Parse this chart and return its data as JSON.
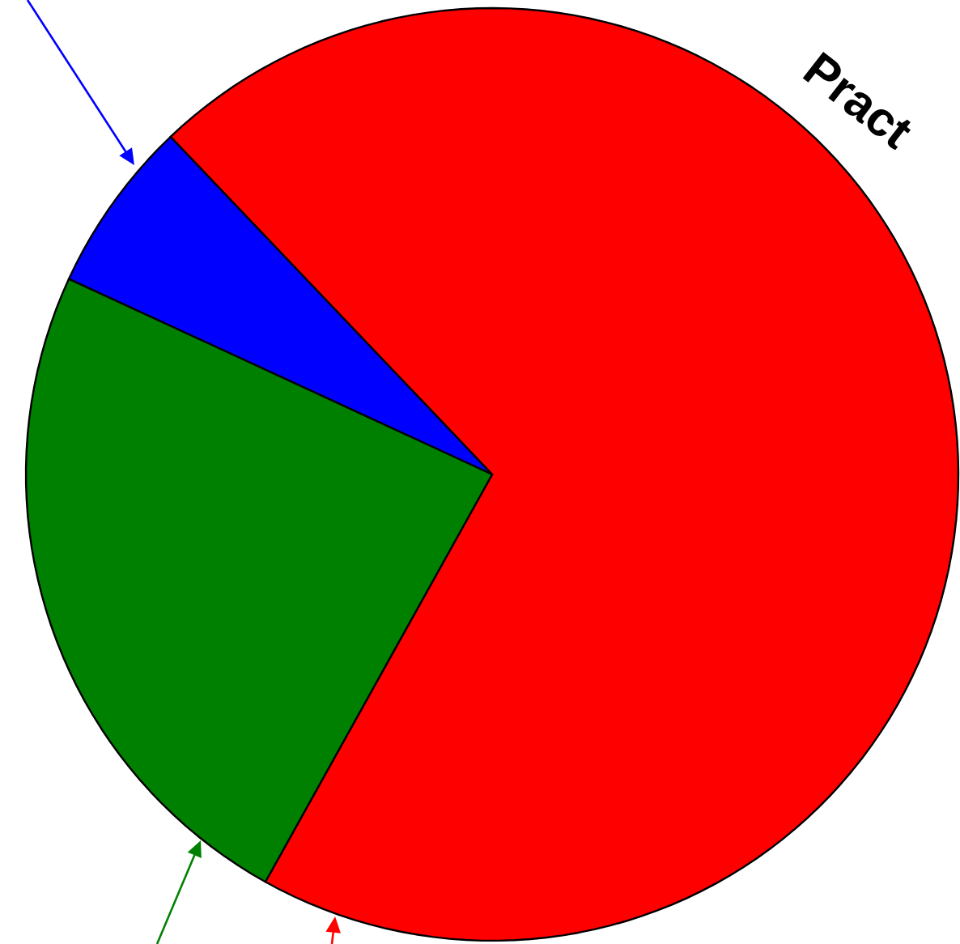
{
  "chart_data": {
    "type": "pie",
    "title": "Pract",
    "categories": [
      null,
      null,
      null
    ],
    "values": [
      70.2,
      6.0,
      23.8
    ],
    "colors": [
      "#ff0000",
      "#0000ff",
      "#008000"
    ]
  }
}
